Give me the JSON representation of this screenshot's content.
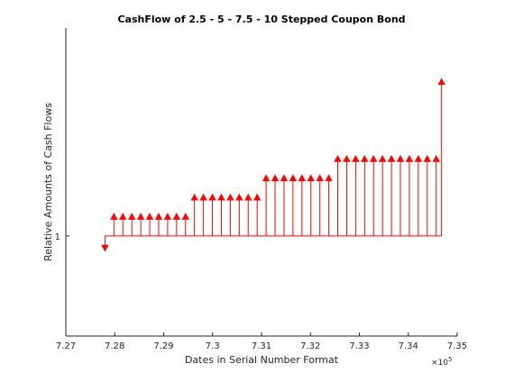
{
  "chart_data": {
    "type": "stem",
    "title": "CashFlow of 2.5 - 5 - 7.5 - 10 Stepped Coupon Bond",
    "xlabel": "Dates in Serial Number Format",
    "ylabel": "Relative Amounts of Cash Flows",
    "x_exponent_label": "×10",
    "x_exponent_power": "5",
    "xlim": [
      727000,
      735000
    ],
    "ylim": [
      0.935,
      1.135
    ],
    "xticks": [
      727000,
      728000,
      729000,
      730000,
      731000,
      732000,
      733000,
      734000,
      735000
    ],
    "xtick_labels": [
      "7.27",
      "7.28",
      "7.29",
      "7.3",
      "7.31",
      "7.32",
      "7.33",
      "7.34",
      "7.35"
    ],
    "yticks": [
      1
    ],
    "ytick_labels": [
      "1"
    ],
    "baseline": 1,
    "grid": false,
    "color": "#ff0000",
    "flows": [
      {
        "x": 727800,
        "y": 0.9922
      },
      {
        "x": 727983,
        "y": 1.0125
      },
      {
        "x": 728166,
        "y": 1.0125
      },
      {
        "x": 728349,
        "y": 1.0125
      },
      {
        "x": 728532,
        "y": 1.0125
      },
      {
        "x": 728715,
        "y": 1.0125
      },
      {
        "x": 728898,
        "y": 1.0125
      },
      {
        "x": 729081,
        "y": 1.0125
      },
      {
        "x": 729264,
        "y": 1.0125
      },
      {
        "x": 729447,
        "y": 1.0125
      },
      {
        "x": 729630,
        "y": 1.025
      },
      {
        "x": 729813,
        "y": 1.025
      },
      {
        "x": 729996,
        "y": 1.025
      },
      {
        "x": 730179,
        "y": 1.025
      },
      {
        "x": 730362,
        "y": 1.025
      },
      {
        "x": 730545,
        "y": 1.025
      },
      {
        "x": 730728,
        "y": 1.025
      },
      {
        "x": 730911,
        "y": 1.025
      },
      {
        "x": 731094,
        "y": 1.0375
      },
      {
        "x": 731277,
        "y": 1.0375
      },
      {
        "x": 731460,
        "y": 1.0375
      },
      {
        "x": 731643,
        "y": 1.0375
      },
      {
        "x": 731826,
        "y": 1.0375
      },
      {
        "x": 732009,
        "y": 1.0375
      },
      {
        "x": 732192,
        "y": 1.0375
      },
      {
        "x": 732375,
        "y": 1.0375
      },
      {
        "x": 732558,
        "y": 1.05
      },
      {
        "x": 732741,
        "y": 1.05
      },
      {
        "x": 732924,
        "y": 1.05
      },
      {
        "x": 733107,
        "y": 1.05
      },
      {
        "x": 733290,
        "y": 1.05
      },
      {
        "x": 733473,
        "y": 1.05
      },
      {
        "x": 733656,
        "y": 1.05
      },
      {
        "x": 733839,
        "y": 1.05
      },
      {
        "x": 734022,
        "y": 1.05
      },
      {
        "x": 734205,
        "y": 1.05
      },
      {
        "x": 734388,
        "y": 1.05
      },
      {
        "x": 734571,
        "y": 1.05
      },
      {
        "x": 734680,
        "y": 1.1
      }
    ]
  }
}
